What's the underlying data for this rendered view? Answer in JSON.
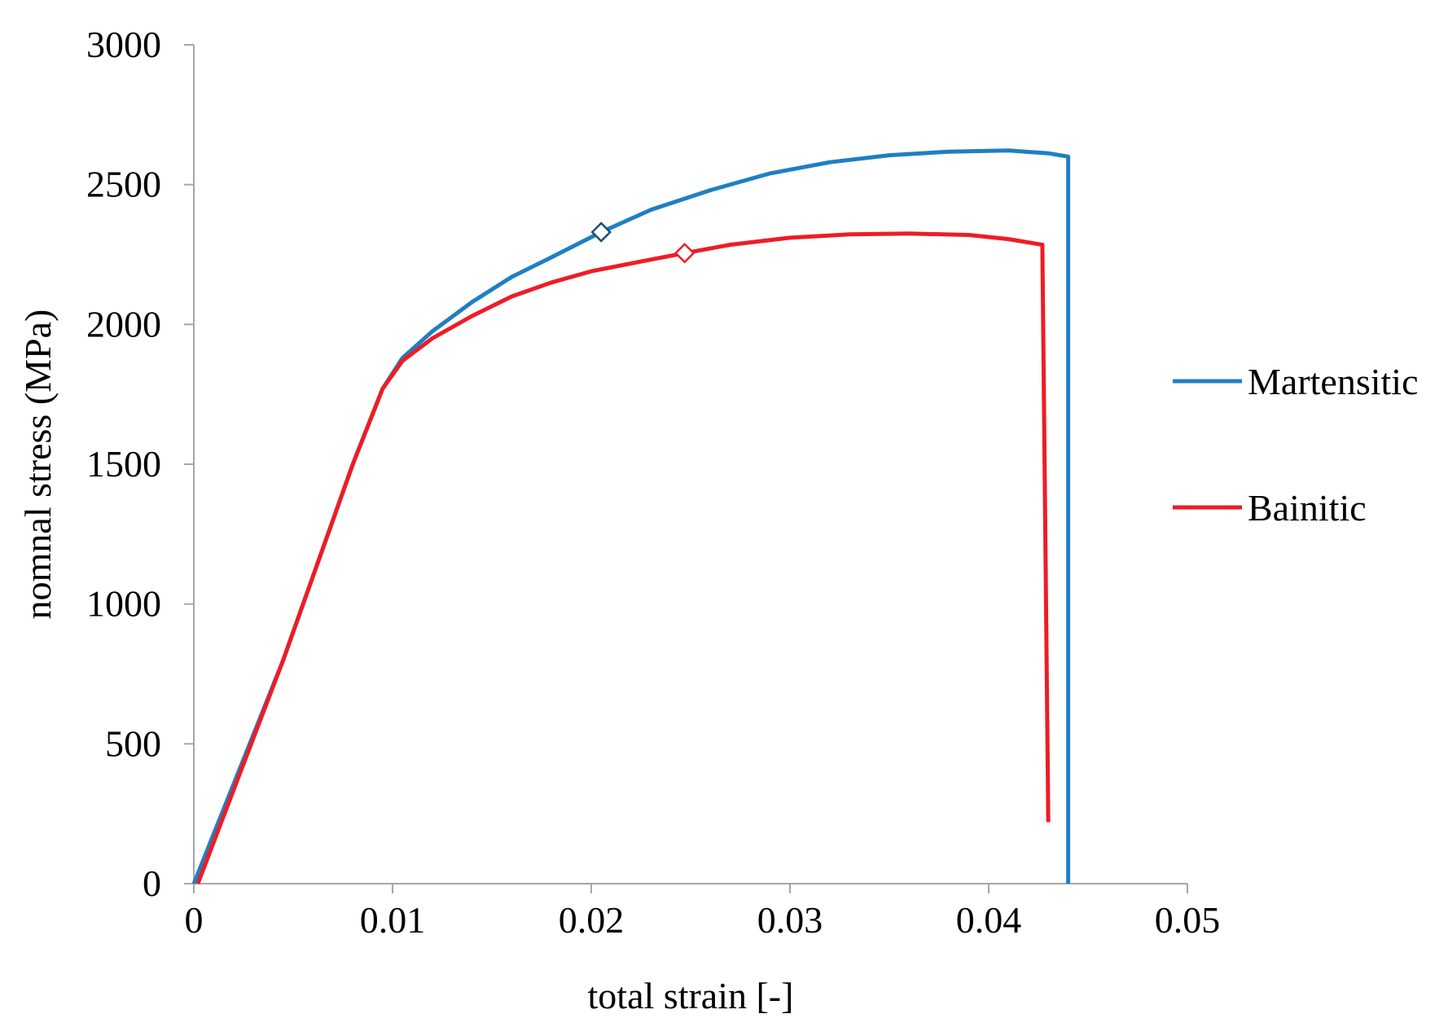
{
  "chart_data": {
    "type": "line",
    "title": "",
    "xlabel": "total strain [-]",
    "ylabel": "nomnal stress (MPa)",
    "xlim": [
      0,
      0.05
    ],
    "ylim": [
      0,
      3000
    ],
    "x_ticks": [
      "0",
      "0.01",
      "0.02",
      "0.03",
      "0.04",
      "0.05"
    ],
    "y_ticks": [
      "0",
      "500",
      "1000",
      "1500",
      "2000",
      "2500",
      "3000"
    ],
    "grid": false,
    "legend_position": "right",
    "series": [
      {
        "name": "Martensitic",
        "color": "#1f7fc4",
        "points": [
          [
            0,
            0
          ],
          [
            0.0045,
            800
          ],
          [
            0.008,
            1500
          ],
          [
            0.0095,
            1770
          ],
          [
            0.0105,
            1880
          ],
          [
            0.012,
            1975
          ],
          [
            0.014,
            2080
          ],
          [
            0.016,
            2170
          ],
          [
            0.018,
            2240
          ],
          [
            0.0205,
            2330
          ],
          [
            0.023,
            2410
          ],
          [
            0.026,
            2480
          ],
          [
            0.029,
            2540
          ],
          [
            0.032,
            2580
          ],
          [
            0.035,
            2605
          ],
          [
            0.038,
            2618
          ],
          [
            0.041,
            2622
          ],
          [
            0.043,
            2612
          ],
          [
            0.044,
            2600
          ],
          [
            0.044,
            0
          ]
        ],
        "marker": {
          "x": 0.0205,
          "y": 2330
        }
      },
      {
        "name": "Bainitic",
        "color": "#ee1c25",
        "points": [
          [
            0.0002,
            0
          ],
          [
            0.0045,
            800
          ],
          [
            0.008,
            1500
          ],
          [
            0.0095,
            1770
          ],
          [
            0.0105,
            1870
          ],
          [
            0.012,
            1950
          ],
          [
            0.014,
            2030
          ],
          [
            0.016,
            2100
          ],
          [
            0.018,
            2150
          ],
          [
            0.02,
            2190
          ],
          [
            0.0225,
            2225
          ],
          [
            0.0247,
            2255
          ],
          [
            0.027,
            2285
          ],
          [
            0.03,
            2310
          ],
          [
            0.033,
            2322
          ],
          [
            0.036,
            2325
          ],
          [
            0.039,
            2320
          ],
          [
            0.041,
            2305
          ],
          [
            0.0427,
            2285
          ],
          [
            0.043,
            220
          ]
        ],
        "marker": {
          "x": 0.0247,
          "y": 2255
        }
      }
    ]
  }
}
